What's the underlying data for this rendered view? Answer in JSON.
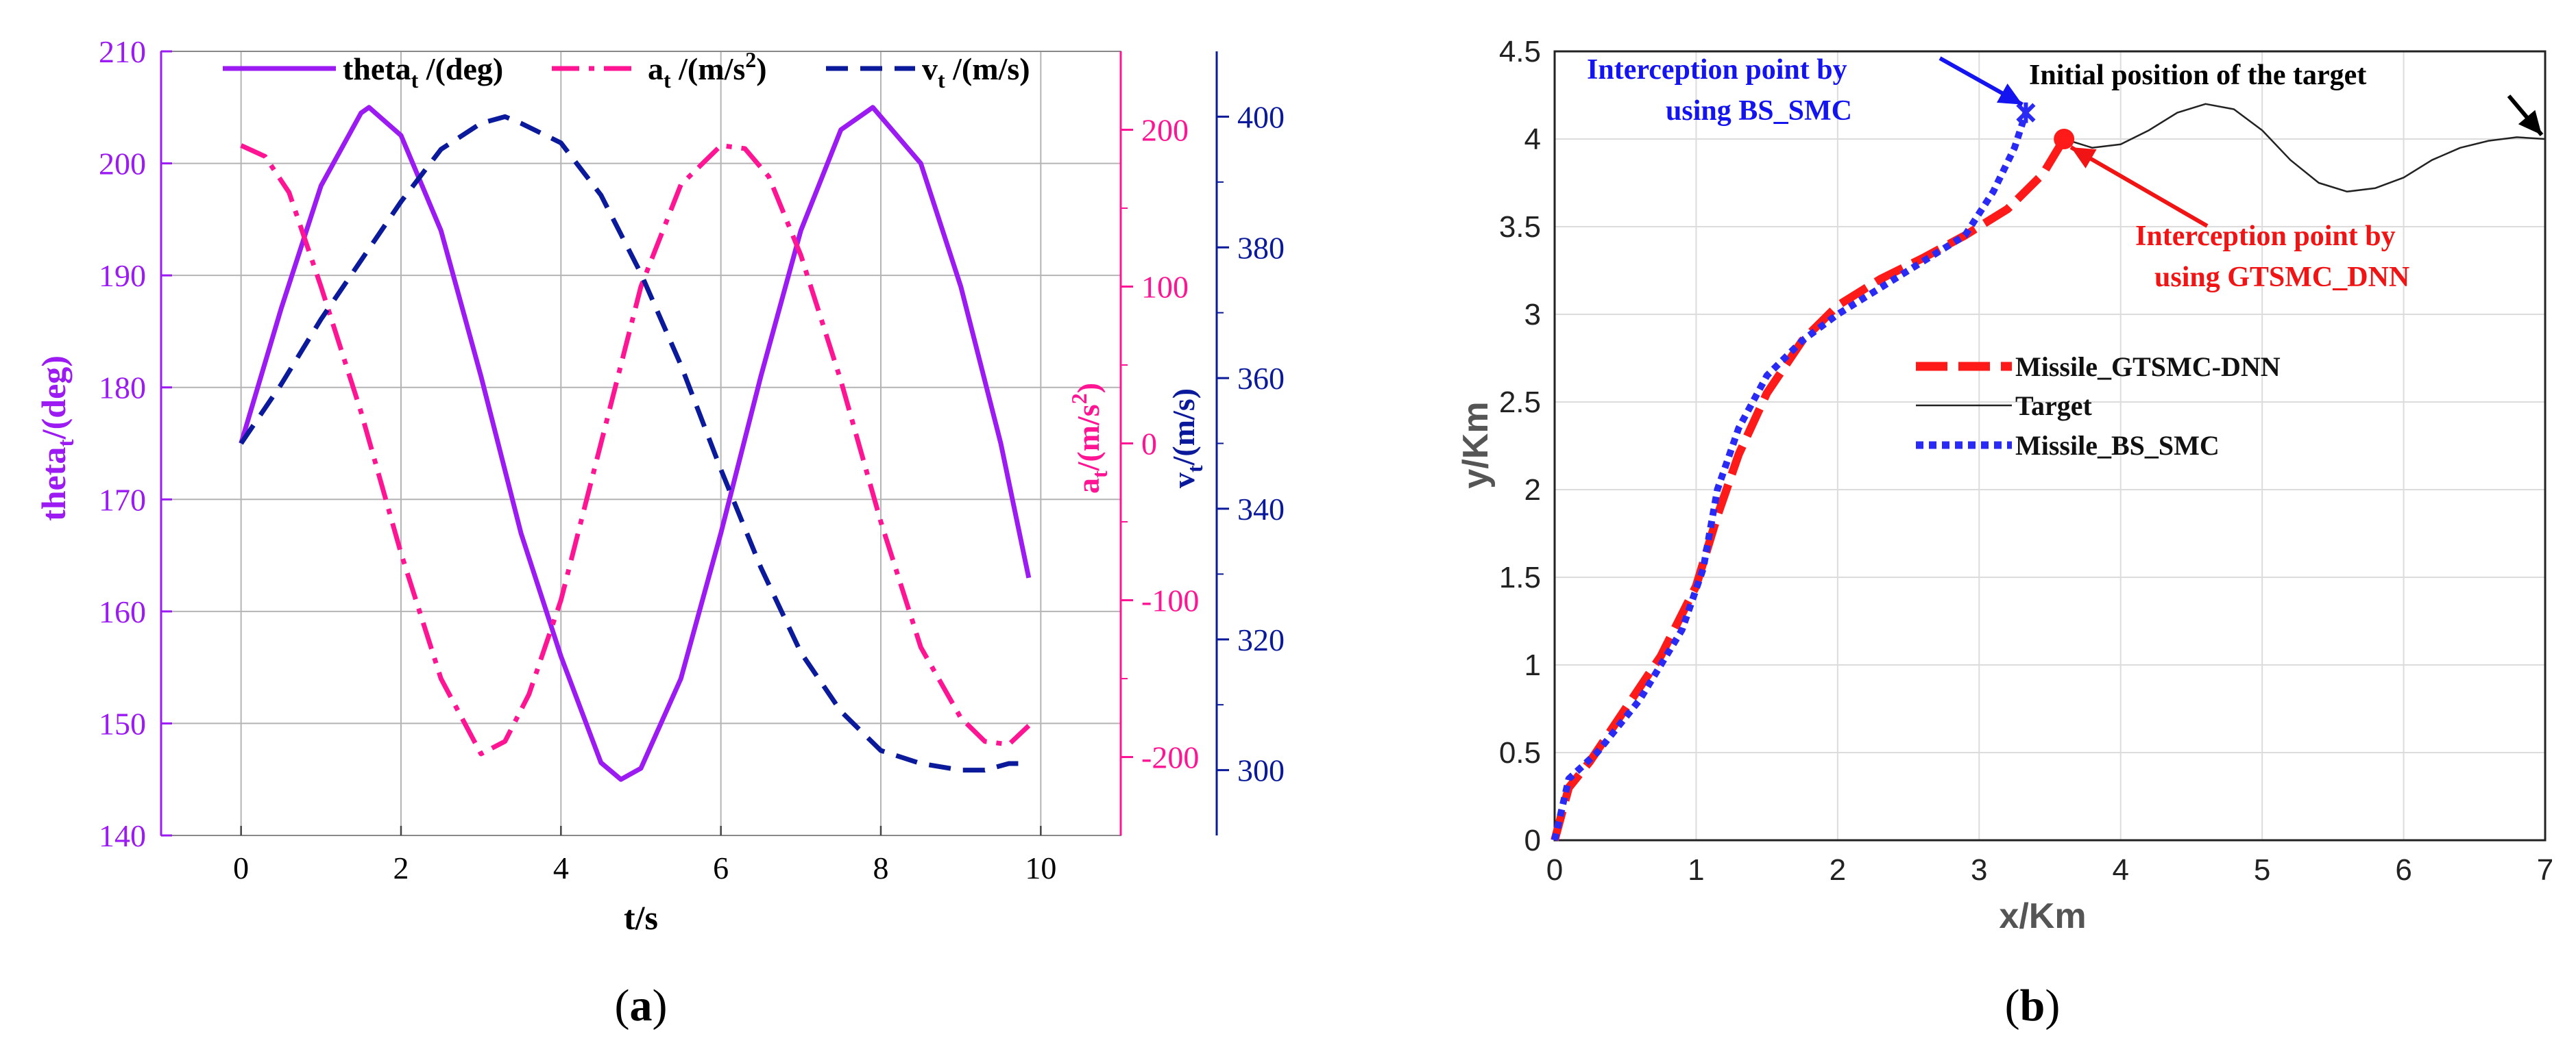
{
  "colors": {
    "theta": "#9B1BF2",
    "a": "#FF1493",
    "v": "#0A1A9B",
    "missile_gtsmc": "#FF1A1A",
    "target": "#222222",
    "missile_bs": "#2A2AF5",
    "ann_blue": "#1414F0",
    "ann_red": "#F01414"
  },
  "chart_data": [
    {
      "id": "a",
      "type": "line",
      "panel_label": "(a)",
      "panel_label_parts": [
        "(",
        "a",
        ")"
      ],
      "xlabel": "t/s",
      "xlim": [
        -1,
        11
      ],
      "xticks": [
        0,
        2,
        4,
        6,
        8,
        10
      ],
      "xtick_labels": [
        "0",
        "2",
        "4",
        "6",
        "8",
        "10"
      ],
      "axes": {
        "theta": {
          "label": "theta",
          "label_sub": "t",
          "label_rest": "/(deg)",
          "lim": [
            140,
            210
          ],
          "ticks": [
            140,
            150,
            160,
            170,
            180,
            190,
            200,
            210
          ],
          "tick_labels": [
            "140",
            "150",
            "160",
            "170",
            "180",
            "190",
            "200",
            "210"
          ]
        },
        "a": {
          "label": "a",
          "label_sub": "t",
          "label_rest": "/(m/s",
          "label_sup": "2",
          "label_close": ")",
          "lim": [
            -250,
            250
          ],
          "ticks": [
            -200,
            -100,
            0,
            100,
            200
          ],
          "tick_labels": [
            "-200",
            "-100",
            "0",
            "100",
            "200"
          ]
        },
        "v": {
          "label": "v",
          "label_sub": "t",
          "label_rest": "/(m/s)",
          "lim": [
            290,
            410
          ],
          "ticks": [
            300,
            320,
            340,
            360,
            380,
            400
          ],
          "tick_labels": [
            "300",
            "320",
            "340",
            "360",
            "380",
            "400"
          ]
        }
      },
      "legend": [
        {
          "main": "theta",
          "sub": "t",
          "rest": " /(deg)",
          "series": "theta"
        },
        {
          "main": "a",
          "sub": "t",
          "rest": " /(m/s",
          "sup": "2",
          "close": ")",
          "series": "a"
        },
        {
          "main": "v",
          "sub": "t",
          "rest": " /(m/s)",
          "series": "v"
        }
      ],
      "series": [
        {
          "name": "theta_t",
          "axis": "theta",
          "x": [
            0,
            0.5,
            1,
            1.5,
            1.6,
            2,
            2.5,
            3,
            3.5,
            4,
            4.5,
            4.75,
            5,
            5.5,
            6,
            6.5,
            7,
            7.5,
            7.9,
            8.5,
            9,
            9.5,
            9.85
          ],
          "y": [
            175,
            187,
            198,
            204.5,
            205,
            202.5,
            194,
            181,
            167,
            156,
            146.5,
            145,
            146,
            154,
            167,
            181,
            194,
            203,
            205,
            200,
            189,
            175,
            163
          ]
        },
        {
          "name": "a_t",
          "axis": "a",
          "x": [
            0,
            0.3,
            0.6,
            1,
            1.5,
            2,
            2.5,
            3,
            3.3,
            3.6,
            4,
            4.5,
            5,
            5.5,
            6,
            6.3,
            6.6,
            7,
            7.5,
            8,
            8.5,
            9,
            9.3,
            9.6,
            9.85
          ],
          "y": [
            190,
            183,
            160,
            100,
            20,
            -70,
            -150,
            -198,
            -190,
            -160,
            -100,
            0,
            100,
            165,
            190,
            188,
            170,
            120,
            40,
            -50,
            -130,
            -175,
            -190,
            -192,
            -180
          ]
        },
        {
          "name": "v_t",
          "axis": "v",
          "x": [
            0,
            0.5,
            1,
            1.5,
            2,
            2.5,
            3,
            3.3,
            3.5,
            4,
            4.5,
            5,
            5.5,
            6,
            6.5,
            7,
            7.5,
            8,
            8.5,
            9,
            9.3,
            9.6,
            9.85
          ],
          "y": [
            350,
            359,
            369,
            378,
            387,
            395,
            399,
            400,
            399,
            396,
            388,
            376,
            362,
            346,
            331,
            318,
            309,
            303,
            301,
            300,
            300,
            301,
            301
          ]
        }
      ]
    },
    {
      "id": "b",
      "type": "line",
      "panel_label": "(b)",
      "panel_label_parts": [
        "(",
        "b",
        ")"
      ],
      "xlabel": "x/Km",
      "ylabel": "y/Km",
      "xlim": [
        0,
        7
      ],
      "ylim": [
        0,
        4.5
      ],
      "xticks": [
        0,
        1,
        2,
        3,
        4,
        5,
        6,
        7
      ],
      "xtick_labels": [
        "0",
        "1",
        "2",
        "3",
        "4",
        "5",
        "6",
        "7"
      ],
      "yticks": [
        0,
        0.5,
        1,
        1.5,
        2,
        2.5,
        3,
        3.5,
        4,
        4.5
      ],
      "ytick_labels": [
        "0",
        "0.5",
        "1",
        "1.5",
        "2",
        "2.5",
        "3",
        "3.5",
        "4",
        "4.5"
      ],
      "grid": true,
      "legend": [
        {
          "label": "Missile_GTSMC-DNN",
          "series": "missile_gtsmc"
        },
        {
          "label": "Target",
          "series": "target"
        },
        {
          "label": "Missile_BS_SMC",
          "series": "missile_bs"
        }
      ],
      "annotations": {
        "bs_line1": "Interception point by",
        "bs_line2": "using BS_SMC",
        "gt_line1": "Interception point by",
        "gt_line2": "using GTSMC_DNN",
        "target_label": "Initial position of the target"
      },
      "series": [
        {
          "name": "Missile_GTSMC-DNN",
          "x": [
            0,
            0.1,
            0.25,
            0.5,
            0.75,
            1.0,
            1.15,
            1.3,
            1.5,
            1.75,
            2.0,
            2.3,
            2.6,
            2.9,
            3.2,
            3.45,
            3.6
          ],
          "y": [
            0,
            0.3,
            0.45,
            0.75,
            1.05,
            1.45,
            1.85,
            2.2,
            2.55,
            2.85,
            3.05,
            3.2,
            3.32,
            3.45,
            3.6,
            3.8,
            4.0
          ]
        },
        {
          "name": "Target",
          "x": [
            3.6,
            3.8,
            4.0,
            4.2,
            4.4,
            4.6,
            4.8,
            5.0,
            5.2,
            5.4,
            5.6,
            5.8,
            6.0,
            6.2,
            6.4,
            6.6,
            6.8,
            7.0
          ],
          "y": [
            4.0,
            3.95,
            3.97,
            4.05,
            4.15,
            4.2,
            4.17,
            4.05,
            3.88,
            3.75,
            3.7,
            3.72,
            3.78,
            3.88,
            3.95,
            3.99,
            4.01,
            4.0
          ]
        },
        {
          "name": "Missile_BS_SMC",
          "x": [
            0,
            0.1,
            0.3,
            0.6,
            0.9,
            1.05,
            1.15,
            1.3,
            1.5,
            1.75,
            2.0,
            2.3,
            2.6,
            2.9,
            3.1,
            3.25,
            3.33
          ],
          "y": [
            0,
            0.35,
            0.5,
            0.8,
            1.2,
            1.55,
            2.0,
            2.35,
            2.65,
            2.85,
            3.0,
            3.15,
            3.3,
            3.45,
            3.7,
            3.95,
            4.15
          ]
        }
      ],
      "interception_gtsmc": [
        3.6,
        4.0
      ],
      "interception_bs": [
        3.33,
        4.15
      ]
    }
  ]
}
